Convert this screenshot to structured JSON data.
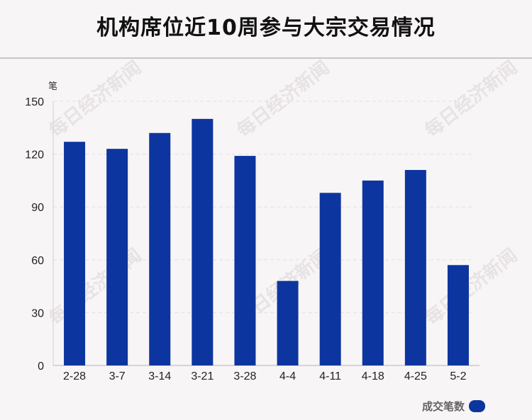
{
  "title": "机构席位近10周参与大宗交易情况",
  "watermark_text": "每日经济新闻",
  "legend": {
    "label": "成交笔数",
    "color": "#0d35a0"
  },
  "chart_data": {
    "type": "bar",
    "title": "机构席位近10周参与大宗交易情况",
    "ylabel": "笔",
    "xlabel": "",
    "categories": [
      "2-28",
      "3-7",
      "3-14",
      "3-21",
      "3-28",
      "4-4",
      "4-11",
      "4-18",
      "4-25",
      "5-2"
    ],
    "series": [
      {
        "name": "成交笔数",
        "values": [
          127,
          123,
          132,
          140,
          119,
          48,
          98,
          105,
          111,
          57
        ],
        "color": "#0d35a0"
      }
    ],
    "ylim": [
      0,
      150
    ],
    "yticks": [
      0,
      30,
      60,
      90,
      120,
      150
    ],
    "grid": true,
    "legend_position": "bottom-right"
  }
}
